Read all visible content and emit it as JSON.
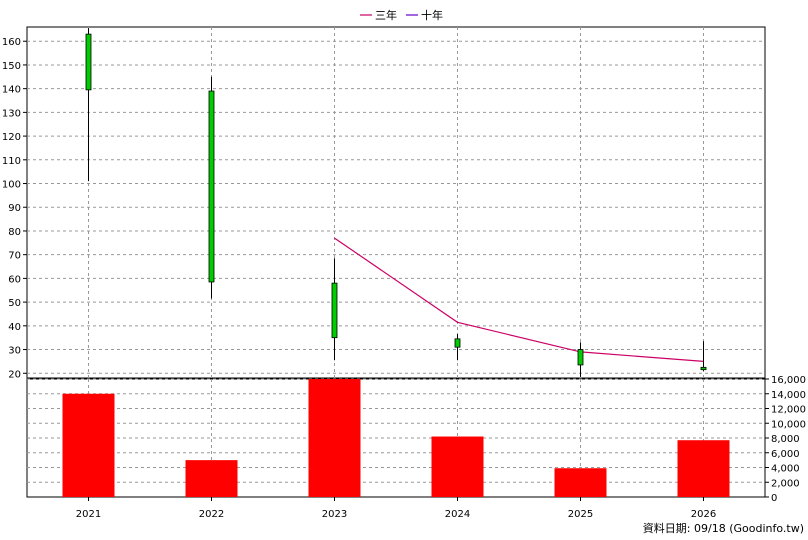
{
  "legend": [
    {
      "label": "三年",
      "color": "#cc0066"
    },
    {
      "label": "十年",
      "color": "#6600cc"
    }
  ],
  "footer": "資料日期: 09/18  (Goodinfo.tw)",
  "chart_data": {
    "type": "candlestick+bar",
    "categories": [
      "2021",
      "2022",
      "2023",
      "2024",
      "2025",
      "2026"
    ],
    "price_axis": {
      "ticks": [
        20,
        30,
        40,
        50,
        60,
        70,
        80,
        90,
        100,
        110,
        120,
        130,
        140,
        150,
        160
      ],
      "range": [
        18,
        166
      ]
    },
    "volume_axis": {
      "ticks": [
        0,
        2000,
        4000,
        6000,
        8000,
        10000,
        12000,
        14000,
        16000
      ],
      "tick_labels": [
        "0",
        "2,000",
        "4,000",
        "6,000",
        "8,000",
        "10,000",
        "12,000",
        "14,000",
        "16,000"
      ],
      "range": [
        0,
        16000
      ]
    },
    "candles": [
      {
        "x": "2021",
        "open": 139.5,
        "close": 163,
        "high": 165.5,
        "low": 101
      },
      {
        "x": "2022",
        "open": 139,
        "close": 58.5,
        "high": 145,
        "low": 51.5
      },
      {
        "x": "2023",
        "open": 35,
        "close": 58,
        "high": 68.5,
        "low": 25.5
      },
      {
        "x": "2024",
        "open": 31,
        "close": 34.5,
        "high": 36.5,
        "low": 25.5
      },
      {
        "x": "2025",
        "open": 23.5,
        "close": 30,
        "high": 33,
        "low": 18.5
      },
      {
        "x": "2026",
        "open": 22.5,
        "close": 21.5,
        "high": 33.5,
        "low": 21
      }
    ],
    "candle_color": "#00cc00",
    "series": [
      {
        "name": "三年",
        "color": "#cc0066",
        "x": [
          "2023",
          "2024",
          "2025",
          "2026"
        ],
        "values": [
          77,
          41.5,
          29,
          25
        ]
      },
      {
        "name": "十年",
        "color": "#6600cc",
        "x": [],
        "values": []
      }
    ],
    "volume": {
      "color": "#ff0000",
      "values": [
        14000,
        5000,
        17500,
        8200,
        3900,
        7700
      ]
    },
    "grid": true
  }
}
